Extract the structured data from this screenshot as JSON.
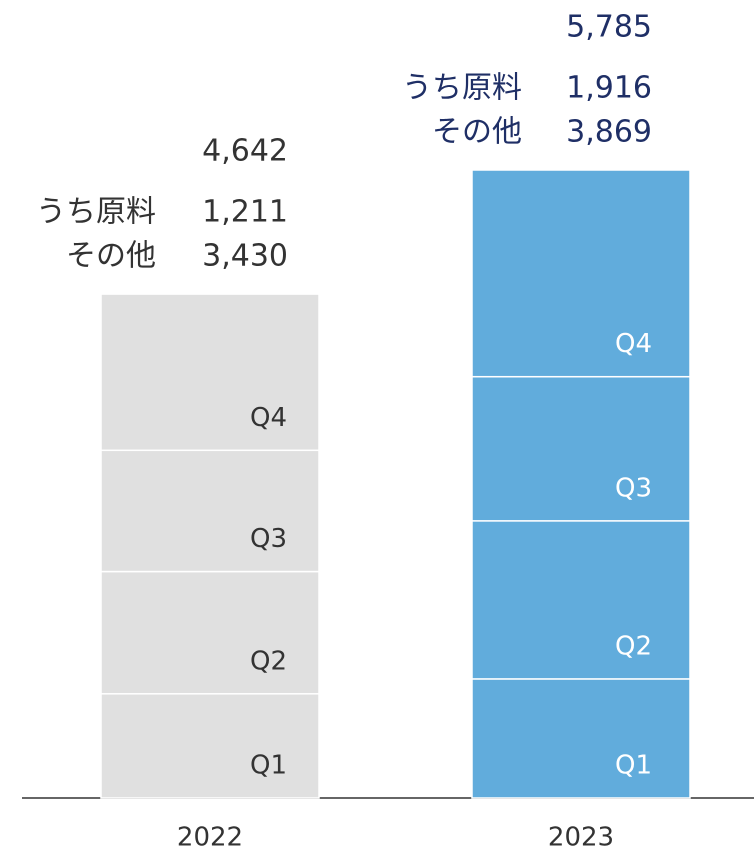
{
  "chart_data": {
    "type": "stacked_bar",
    "categories": [
      "2022",
      "2023"
    ],
    "series": [
      {
        "name": "Q1",
        "values": [
          960,
          1097
        ]
      },
      {
        "name": "Q2",
        "values": [
          1126,
          1456
        ]
      },
      {
        "name": "Q3",
        "values": [
          1117,
          1328
        ]
      },
      {
        "name": "Q4",
        "values": [
          1439,
          1904
        ]
      }
    ],
    "totals": {
      "values": [
        4642,
        5785
      ],
      "value_labels": [
        "4,642",
        "5,785"
      ]
    },
    "breakdown": [
      {
        "name": "うち原料",
        "values": [
          1211,
          1916
        ],
        "value_labels": [
          "1,211",
          "1,916"
        ]
      },
      {
        "name": "その他",
        "values": [
          3430,
          3869
        ],
        "value_labels": [
          "3,430",
          "3,869"
        ]
      }
    ],
    "bar_colors": [
      "#e0e0e0",
      "#61acdc"
    ],
    "label_colors": [
      "#333333",
      "#1f2f66"
    ],
    "segment_label_colors": [
      "#333333",
      "#ffffff"
    ]
  }
}
